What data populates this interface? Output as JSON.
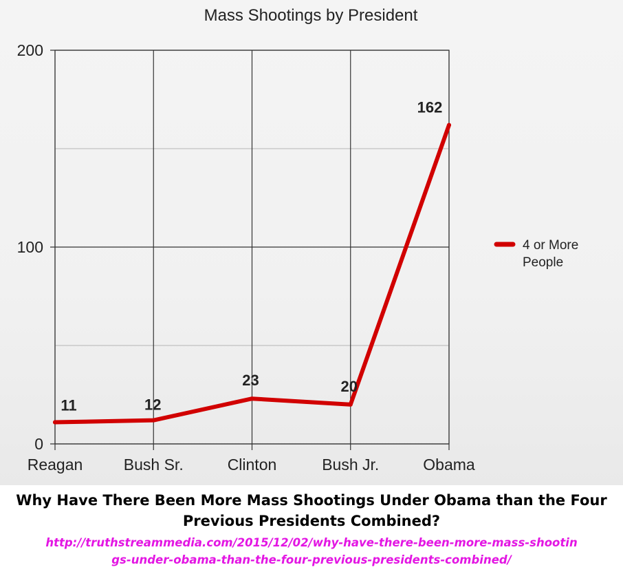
{
  "chart_data": {
    "type": "line",
    "title": "Mass Shootings by President",
    "categories": [
      "Reagan",
      "Bush Sr.",
      "Clinton",
      "Bush Jr.",
      "Obama"
    ],
    "series": [
      {
        "name": "4 or More People",
        "values": [
          11,
          12,
          23,
          20,
          162
        ],
        "color": "#d10000"
      }
    ],
    "data_labels": [
      "11",
      "12",
      "23",
      "20",
      "162"
    ],
    "ylim": [
      0,
      200
    ],
    "yticks": [
      0,
      100,
      200
    ],
    "grid": true,
    "legend": "right",
    "xlabel": "",
    "ylabel": ""
  },
  "caption": {
    "headline": "Why Have There Been More Mass Shootings Under Obama than the Four Previous Presidents Combined?",
    "url": "http://truthstreammedia.com/2015/12/02/why-have-there-been-more-mass-shootings-under-obama-than-the-four-previous-presidents-combined/",
    "url_color": "#e316e3"
  }
}
